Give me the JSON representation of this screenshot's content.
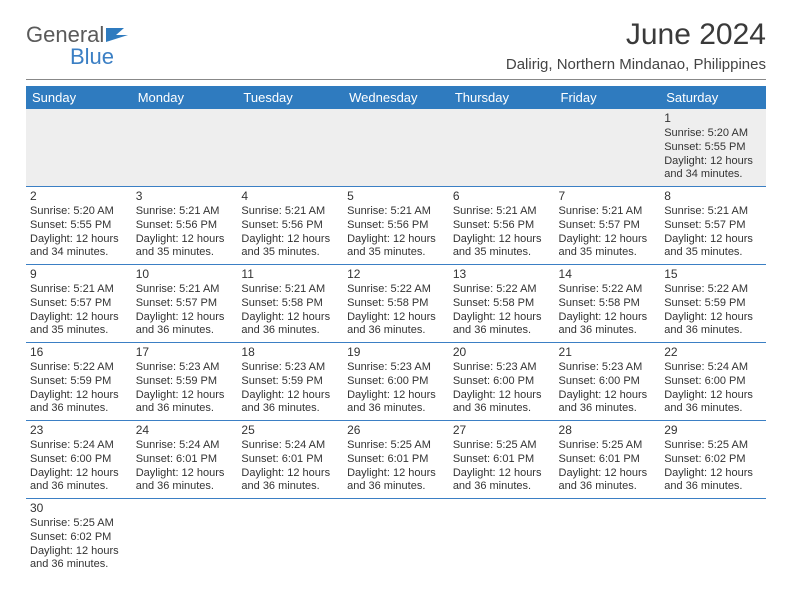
{
  "brand": {
    "name_part1": "General",
    "name_part2": "Blue"
  },
  "title": "June 2024",
  "subtitle": "Dalirig, Northern Mindanao, Philippines",
  "colors": {
    "header_bg": "#2f7bbf",
    "header_text": "#ffffff",
    "row_border": "#3b7fc4",
    "empty_bg": "#eeeeee",
    "text": "#333333"
  },
  "day_headers": [
    "Sunday",
    "Monday",
    "Tuesday",
    "Wednesday",
    "Thursday",
    "Friday",
    "Saturday"
  ],
  "weeks": [
    [
      null,
      null,
      null,
      null,
      null,
      null,
      {
        "n": "1",
        "sunrise": "Sunrise: 5:20 AM",
        "sunset": "Sunset: 5:55 PM",
        "day1": "Daylight: 12 hours",
        "day2": "and 34 minutes."
      }
    ],
    [
      {
        "n": "2",
        "sunrise": "Sunrise: 5:20 AM",
        "sunset": "Sunset: 5:55 PM",
        "day1": "Daylight: 12 hours",
        "day2": "and 34 minutes."
      },
      {
        "n": "3",
        "sunrise": "Sunrise: 5:21 AM",
        "sunset": "Sunset: 5:56 PM",
        "day1": "Daylight: 12 hours",
        "day2": "and 35 minutes."
      },
      {
        "n": "4",
        "sunrise": "Sunrise: 5:21 AM",
        "sunset": "Sunset: 5:56 PM",
        "day1": "Daylight: 12 hours",
        "day2": "and 35 minutes."
      },
      {
        "n": "5",
        "sunrise": "Sunrise: 5:21 AM",
        "sunset": "Sunset: 5:56 PM",
        "day1": "Daylight: 12 hours",
        "day2": "and 35 minutes."
      },
      {
        "n": "6",
        "sunrise": "Sunrise: 5:21 AM",
        "sunset": "Sunset: 5:56 PM",
        "day1": "Daylight: 12 hours",
        "day2": "and 35 minutes."
      },
      {
        "n": "7",
        "sunrise": "Sunrise: 5:21 AM",
        "sunset": "Sunset: 5:57 PM",
        "day1": "Daylight: 12 hours",
        "day2": "and 35 minutes."
      },
      {
        "n": "8",
        "sunrise": "Sunrise: 5:21 AM",
        "sunset": "Sunset: 5:57 PM",
        "day1": "Daylight: 12 hours",
        "day2": "and 35 minutes."
      }
    ],
    [
      {
        "n": "9",
        "sunrise": "Sunrise: 5:21 AM",
        "sunset": "Sunset: 5:57 PM",
        "day1": "Daylight: 12 hours",
        "day2": "and 35 minutes."
      },
      {
        "n": "10",
        "sunrise": "Sunrise: 5:21 AM",
        "sunset": "Sunset: 5:57 PM",
        "day1": "Daylight: 12 hours",
        "day2": "and 36 minutes."
      },
      {
        "n": "11",
        "sunrise": "Sunrise: 5:21 AM",
        "sunset": "Sunset: 5:58 PM",
        "day1": "Daylight: 12 hours",
        "day2": "and 36 minutes."
      },
      {
        "n": "12",
        "sunrise": "Sunrise: 5:22 AM",
        "sunset": "Sunset: 5:58 PM",
        "day1": "Daylight: 12 hours",
        "day2": "and 36 minutes."
      },
      {
        "n": "13",
        "sunrise": "Sunrise: 5:22 AM",
        "sunset": "Sunset: 5:58 PM",
        "day1": "Daylight: 12 hours",
        "day2": "and 36 minutes."
      },
      {
        "n": "14",
        "sunrise": "Sunrise: 5:22 AM",
        "sunset": "Sunset: 5:58 PM",
        "day1": "Daylight: 12 hours",
        "day2": "and 36 minutes."
      },
      {
        "n": "15",
        "sunrise": "Sunrise: 5:22 AM",
        "sunset": "Sunset: 5:59 PM",
        "day1": "Daylight: 12 hours",
        "day2": "and 36 minutes."
      }
    ],
    [
      {
        "n": "16",
        "sunrise": "Sunrise: 5:22 AM",
        "sunset": "Sunset: 5:59 PM",
        "day1": "Daylight: 12 hours",
        "day2": "and 36 minutes."
      },
      {
        "n": "17",
        "sunrise": "Sunrise: 5:23 AM",
        "sunset": "Sunset: 5:59 PM",
        "day1": "Daylight: 12 hours",
        "day2": "and 36 minutes."
      },
      {
        "n": "18",
        "sunrise": "Sunrise: 5:23 AM",
        "sunset": "Sunset: 5:59 PM",
        "day1": "Daylight: 12 hours",
        "day2": "and 36 minutes."
      },
      {
        "n": "19",
        "sunrise": "Sunrise: 5:23 AM",
        "sunset": "Sunset: 6:00 PM",
        "day1": "Daylight: 12 hours",
        "day2": "and 36 minutes."
      },
      {
        "n": "20",
        "sunrise": "Sunrise: 5:23 AM",
        "sunset": "Sunset: 6:00 PM",
        "day1": "Daylight: 12 hours",
        "day2": "and 36 minutes."
      },
      {
        "n": "21",
        "sunrise": "Sunrise: 5:23 AM",
        "sunset": "Sunset: 6:00 PM",
        "day1": "Daylight: 12 hours",
        "day2": "and 36 minutes."
      },
      {
        "n": "22",
        "sunrise": "Sunrise: 5:24 AM",
        "sunset": "Sunset: 6:00 PM",
        "day1": "Daylight: 12 hours",
        "day2": "and 36 minutes."
      }
    ],
    [
      {
        "n": "23",
        "sunrise": "Sunrise: 5:24 AM",
        "sunset": "Sunset: 6:00 PM",
        "day1": "Daylight: 12 hours",
        "day2": "and 36 minutes."
      },
      {
        "n": "24",
        "sunrise": "Sunrise: 5:24 AM",
        "sunset": "Sunset: 6:01 PM",
        "day1": "Daylight: 12 hours",
        "day2": "and 36 minutes."
      },
      {
        "n": "25",
        "sunrise": "Sunrise: 5:24 AM",
        "sunset": "Sunset: 6:01 PM",
        "day1": "Daylight: 12 hours",
        "day2": "and 36 minutes."
      },
      {
        "n": "26",
        "sunrise": "Sunrise: 5:25 AM",
        "sunset": "Sunset: 6:01 PM",
        "day1": "Daylight: 12 hours",
        "day2": "and 36 minutes."
      },
      {
        "n": "27",
        "sunrise": "Sunrise: 5:25 AM",
        "sunset": "Sunset: 6:01 PM",
        "day1": "Daylight: 12 hours",
        "day2": "and 36 minutes."
      },
      {
        "n": "28",
        "sunrise": "Sunrise: 5:25 AM",
        "sunset": "Sunset: 6:01 PM",
        "day1": "Daylight: 12 hours",
        "day2": "and 36 minutes."
      },
      {
        "n": "29",
        "sunrise": "Sunrise: 5:25 AM",
        "sunset": "Sunset: 6:02 PM",
        "day1": "Daylight: 12 hours",
        "day2": "and 36 minutes."
      }
    ],
    [
      {
        "n": "30",
        "sunrise": "Sunrise: 5:25 AM",
        "sunset": "Sunset: 6:02 PM",
        "day1": "Daylight: 12 hours",
        "day2": "and 36 minutes."
      },
      null,
      null,
      null,
      null,
      null,
      null
    ]
  ]
}
